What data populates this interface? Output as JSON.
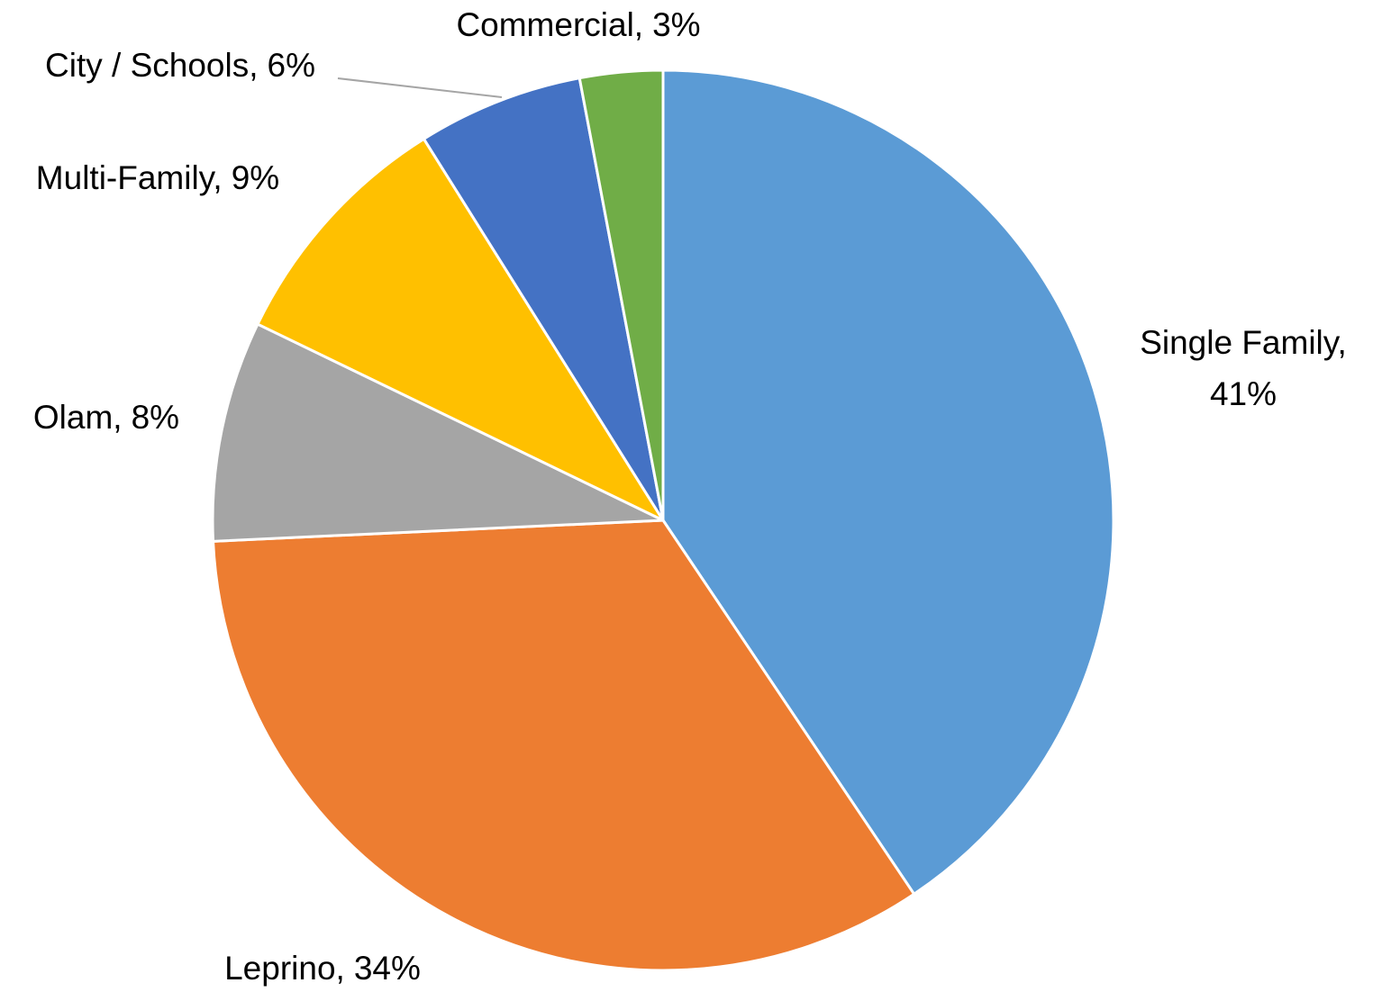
{
  "chart_data": {
    "type": "pie",
    "categories": [
      "Single Family,",
      "Leprino,",
      "Olam,",
      "Multi-Family,",
      "City / Schools,",
      "Commercial,"
    ],
    "values": [
      41,
      34,
      8,
      9,
      6,
      3
    ],
    "value_labels": [
      "41%",
      "34%",
      "8%",
      "9%",
      "6%",
      "3%"
    ],
    "colors": [
      "#5b9bd5",
      "#ed7d31",
      "#a5a5a5",
      "#ffc000",
      "#4472c4",
      "#70ad47"
    ]
  }
}
